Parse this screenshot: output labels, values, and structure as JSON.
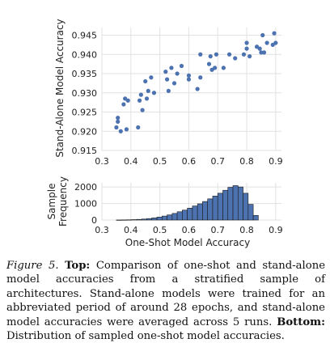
{
  "chart_data": [
    {
      "type": "scatter",
      "xlabel": "",
      "ylabel": "Stand-Alone Model Accuracy",
      "xlim": [
        0.3,
        0.92
      ],
      "ylim": [
        0.915,
        0.947
      ],
      "xticks": [
        "0.3",
        "0.4",
        "0.5",
        "0.6",
        "0.7",
        "0.8",
        "0.9"
      ],
      "yticks": [
        "0.915",
        "0.920",
        "0.925",
        "0.930",
        "0.935",
        "0.940",
        "0.945"
      ],
      "color": "#4c72b0",
      "grid": true,
      "points": [
        [
          0.35,
          0.921
        ],
        [
          0.355,
          0.9225
        ],
        [
          0.355,
          0.9235
        ],
        [
          0.365,
          0.92
        ],
        [
          0.375,
          0.927
        ],
        [
          0.38,
          0.9285
        ],
        [
          0.385,
          0.9205
        ],
        [
          0.39,
          0.928
        ],
        [
          0.425,
          0.921
        ],
        [
          0.43,
          0.928
        ],
        [
          0.435,
          0.9295
        ],
        [
          0.44,
          0.9255
        ],
        [
          0.45,
          0.933
        ],
        [
          0.455,
          0.9285
        ],
        [
          0.46,
          0.9305
        ],
        [
          0.47,
          0.934
        ],
        [
          0.48,
          0.93
        ],
        [
          0.52,
          0.9355
        ],
        [
          0.525,
          0.9335
        ],
        [
          0.53,
          0.9305
        ],
        [
          0.54,
          0.9365
        ],
        [
          0.55,
          0.9325
        ],
        [
          0.56,
          0.935
        ],
        [
          0.575,
          0.937
        ],
        [
          0.6,
          0.9345
        ],
        [
          0.6,
          0.9335
        ],
        [
          0.63,
          0.931
        ],
        [
          0.64,
          0.94
        ],
        [
          0.64,
          0.934
        ],
        [
          0.67,
          0.9375
        ],
        [
          0.675,
          0.9395
        ],
        [
          0.68,
          0.936
        ],
        [
          0.69,
          0.9365
        ],
        [
          0.695,
          0.94
        ],
        [
          0.72,
          0.9365
        ],
        [
          0.74,
          0.94
        ],
        [
          0.76,
          0.939
        ],
        [
          0.79,
          0.94
        ],
        [
          0.8,
          0.943
        ],
        [
          0.8,
          0.9415
        ],
        [
          0.81,
          0.9395
        ],
        [
          0.835,
          0.942
        ],
        [
          0.845,
          0.9415
        ],
        [
          0.85,
          0.9405
        ],
        [
          0.855,
          0.945
        ],
        [
          0.86,
          0.9405
        ],
        [
          0.87,
          0.943
        ],
        [
          0.89,
          0.9425
        ],
        [
          0.895,
          0.9455
        ],
        [
          0.9,
          0.943
        ]
      ]
    },
    {
      "type": "bar",
      "xlabel": "One-Shot Model Accuracy",
      "ylabel": "Sample Frequency",
      "ylabel_lines": [
        "Sample",
        "Frequency"
      ],
      "xlim": [
        0.3,
        0.92
      ],
      "ylim": [
        0,
        2250
      ],
      "xticks": [
        "0.3",
        "0.4",
        "0.5",
        "0.6",
        "0.7",
        "0.8",
        "0.9"
      ],
      "yticks": [
        "0",
        "1000",
        "2000"
      ],
      "color": "#4c72b0",
      "edge_color": "#1a1a1a",
      "bin_start": 0.35,
      "bin_width": 0.0175,
      "values": [
        5,
        10,
        15,
        25,
        40,
        60,
        90,
        130,
        180,
        240,
        310,
        400,
        500,
        600,
        720,
        850,
        980,
        1120,
        1280,
        1450,
        1620,
        1800,
        1980,
        2080,
        2000,
        1620,
        950,
        280
      ]
    }
  ],
  "caption": {
    "label": "Figure 5.",
    "top_label": "Top:",
    "top_text": "Comparison of one-shot and stand-alone model accuracies from a stratified sample of architectures. Stand-alone models were trained for an abbreviated period of around 28 epochs, and stand-alone model accuracies were averaged across 5 runs.",
    "bottom_label": "Bottom:",
    "bottom_text": "Distribution of sampled one-shot model accuracies."
  }
}
